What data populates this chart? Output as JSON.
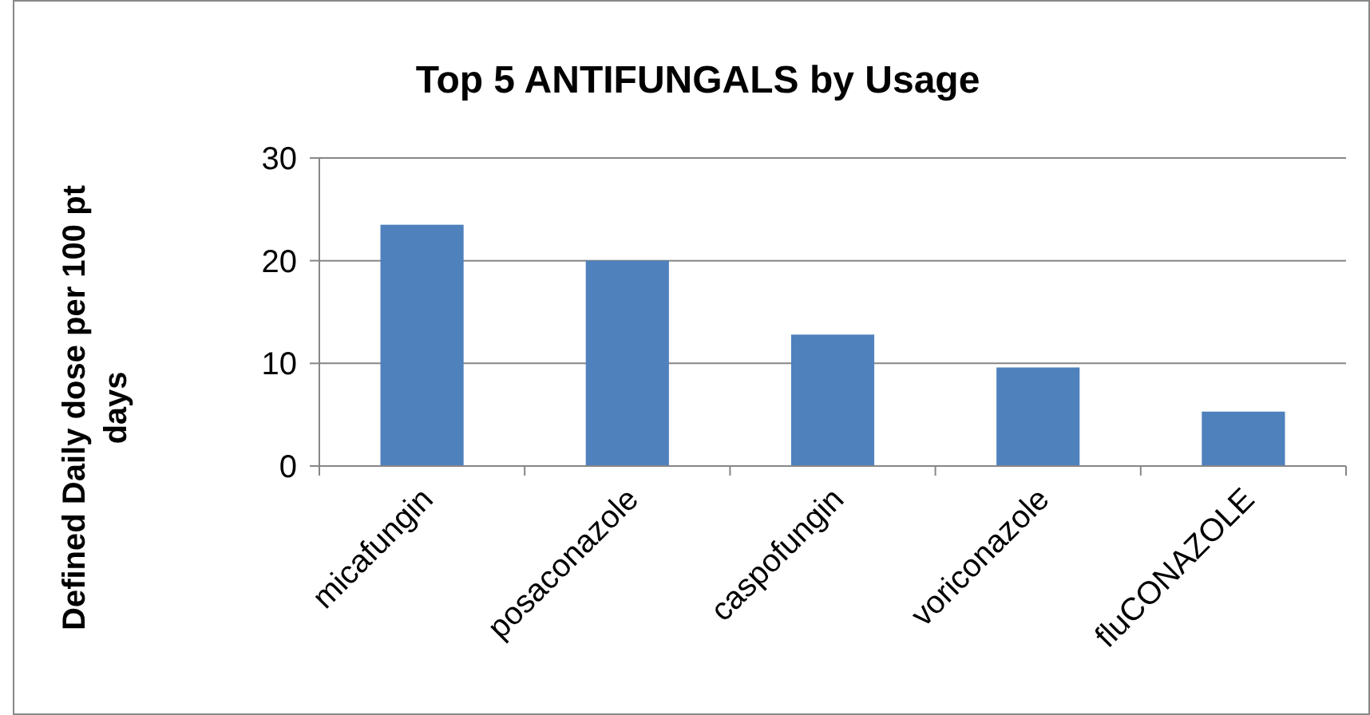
{
  "chart_data": {
    "type": "bar",
    "title": "Top 5 ANTIFUNGALS by Usage",
    "ylabel": "Defined Daily dose per 100 pt days",
    "categories": [
      "micafungin",
      "posaconazole",
      "caspofungin",
      "voriconazole",
      "fluCONAZOLE"
    ],
    "values": [
      23.5,
      20,
      12.8,
      9.6,
      5.3
    ],
    "color": "#4f81bd",
    "ylim": [
      0,
      30
    ],
    "yticks": [
      0,
      10,
      20,
      30
    ],
    "grid": "y"
  }
}
